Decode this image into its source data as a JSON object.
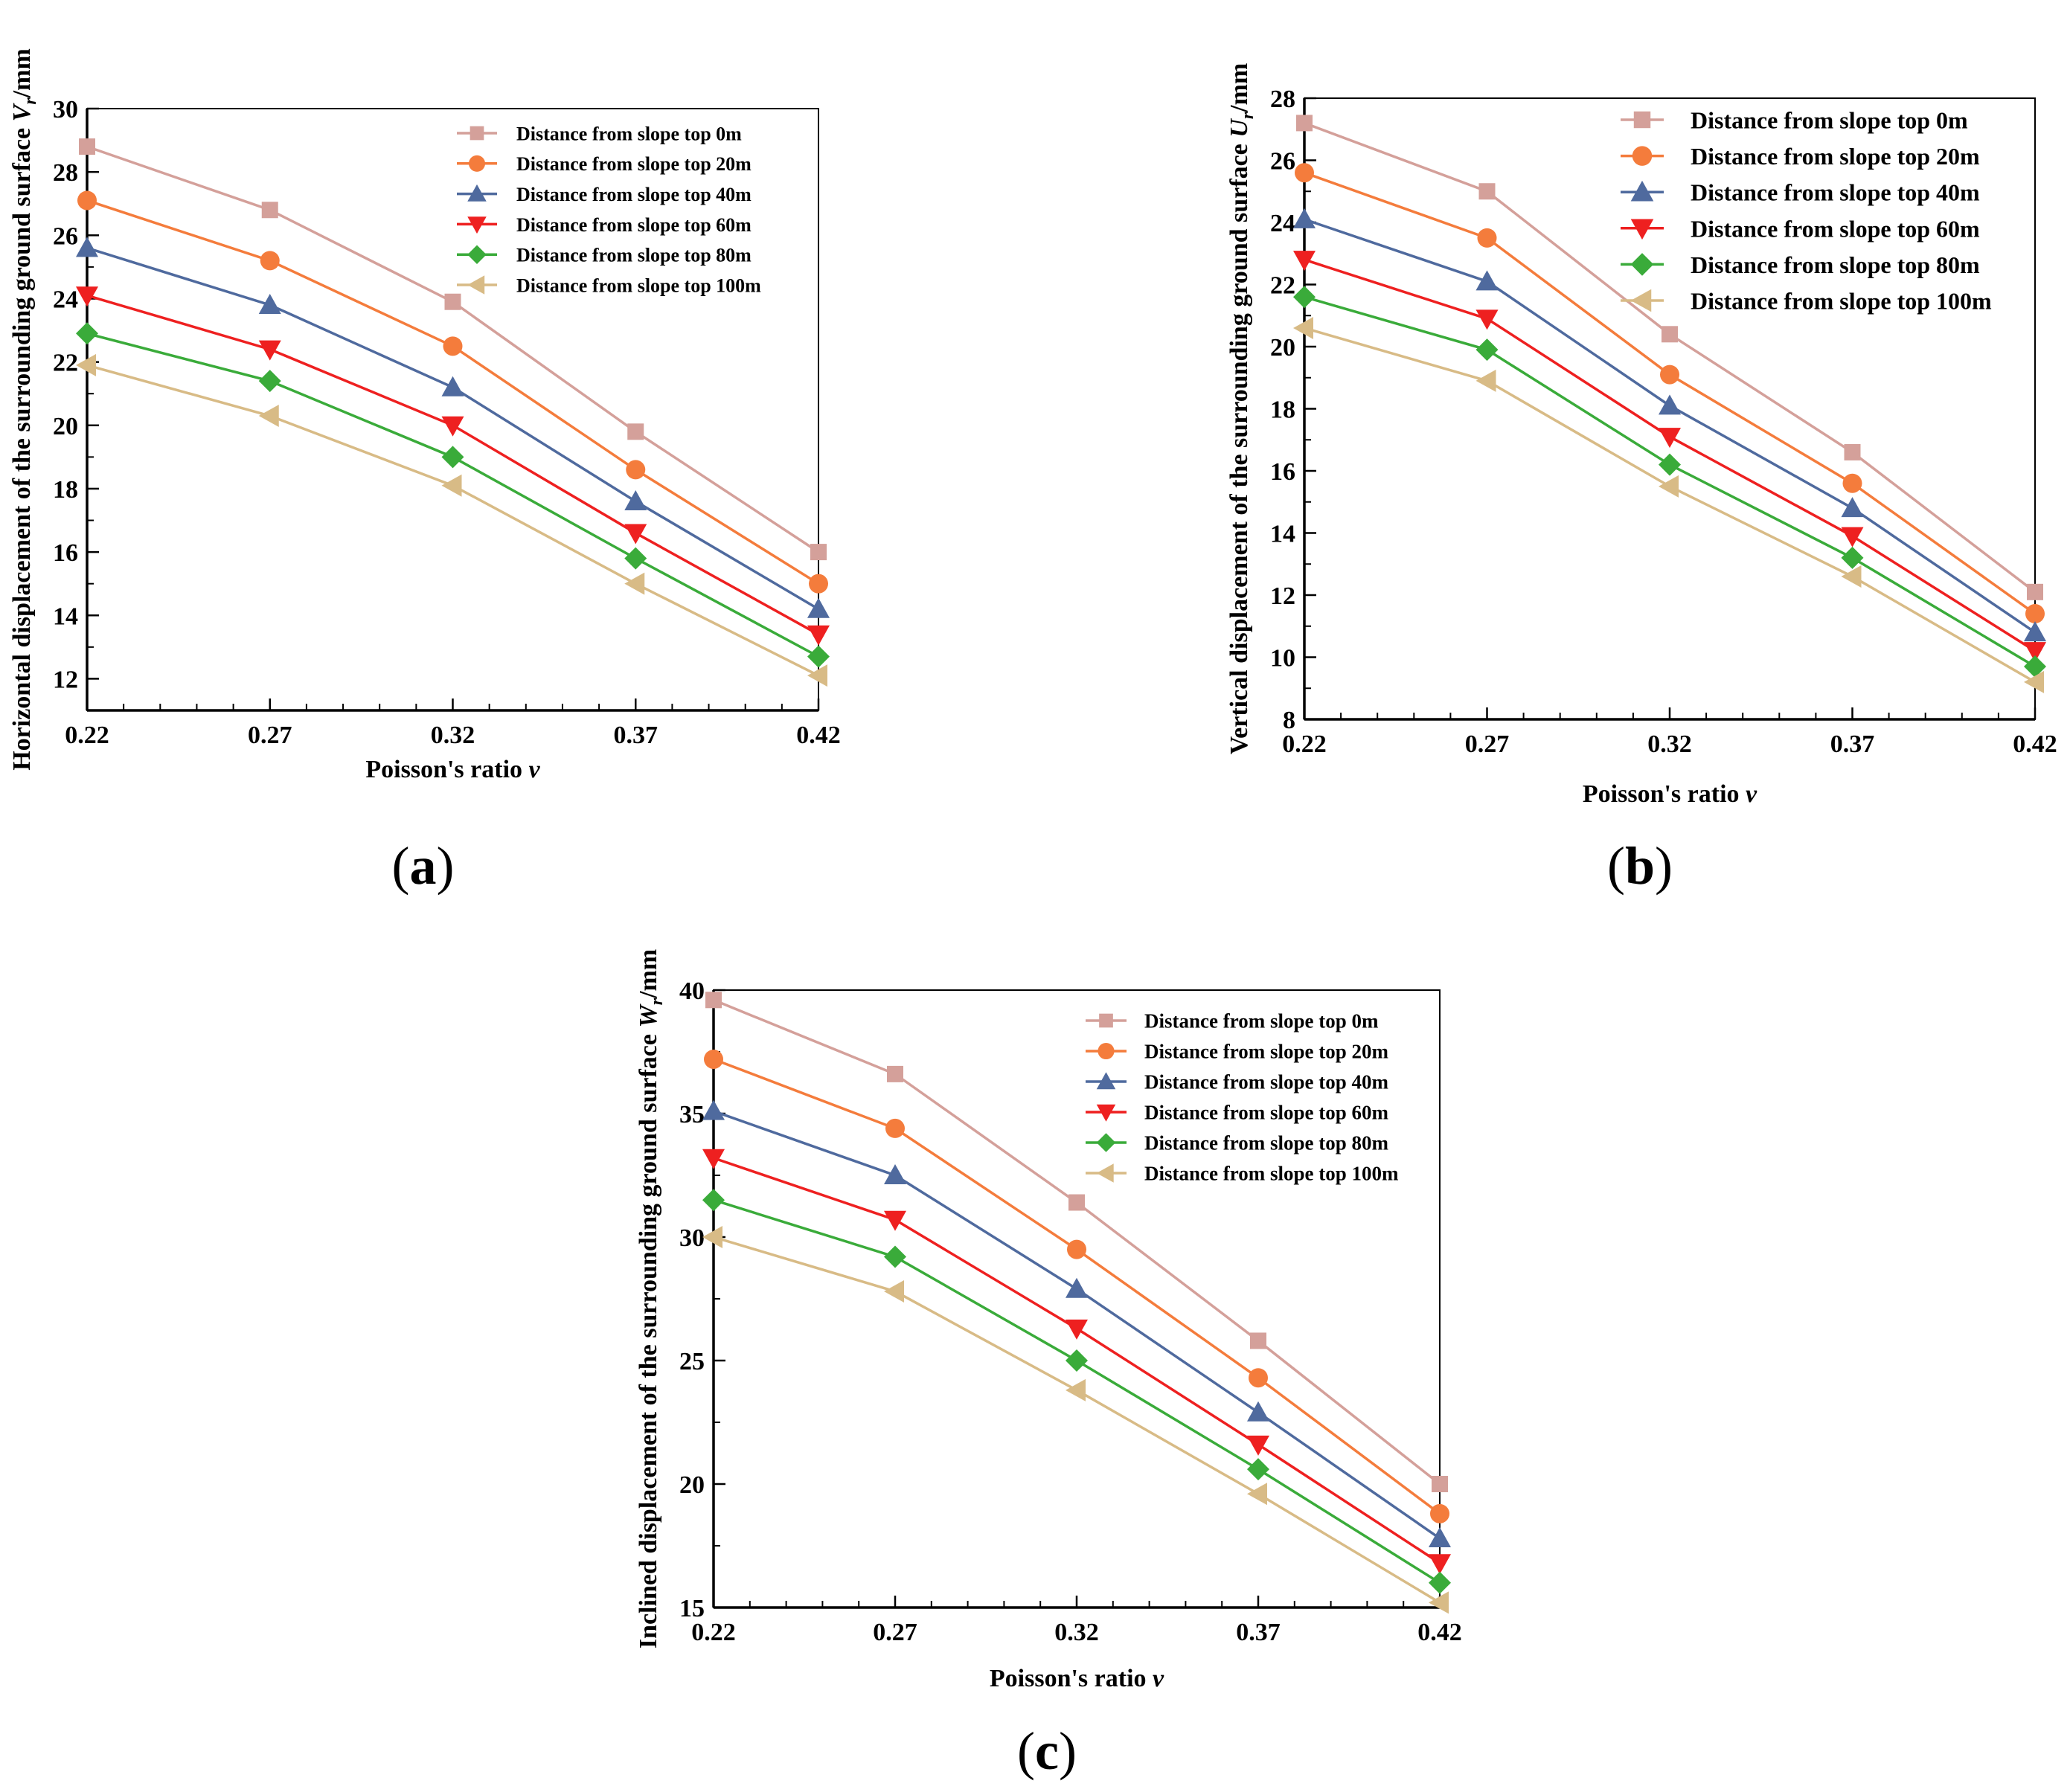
{
  "chart_data": [
    {
      "type": "line",
      "panel_label": "a",
      "x": [
        0.22,
        0.27,
        0.32,
        0.37,
        0.42
      ],
      "x_tick_labels": [
        "0.22",
        "0.27",
        "0.32",
        "0.37",
        "0.42"
      ],
      "xlim": [
        0.22,
        0.42
      ],
      "ylim": [
        11,
        30
      ],
      "y_ticks": [
        12,
        14,
        16,
        18,
        20,
        22,
        24,
        26,
        28,
        30
      ],
      "xlabel": "Poisson's ratio",
      "xlabel_symbol": "ν",
      "ylabel": "Horizontal displacement of the surrounding ground surface",
      "ylabel_symbol": "V",
      "ylabel_subscript": "r",
      "ylabel_unit": "/mm",
      "legend_position": "top-right",
      "grid": false,
      "series": [
        {
          "name": "Distance from slope top 0m",
          "color": "#d4a09a",
          "marker": "square",
          "values": [
            28.8,
            26.8,
            23.9,
            19.8,
            16.0
          ]
        },
        {
          "name": "Distance from slope top 20m",
          "color": "#f47c3c",
          "marker": "circle",
          "values": [
            27.1,
            25.2,
            22.5,
            18.6,
            15.0
          ]
        },
        {
          "name": "Distance from slope top 40m",
          "color": "#4f6a9e",
          "marker": "triangle-up",
          "values": [
            25.6,
            23.8,
            21.2,
            17.6,
            14.2
          ]
        },
        {
          "name": "Distance from slope top 60m",
          "color": "#ee2020",
          "marker": "triangle-down",
          "values": [
            24.1,
            22.4,
            20.0,
            16.6,
            13.4
          ]
        },
        {
          "name": "Distance from slope top 80m",
          "color": "#3aab3a",
          "marker": "diamond",
          "values": [
            22.9,
            21.4,
            19.0,
            15.8,
            12.7
          ]
        },
        {
          "name": "Distance from slope top 100m",
          "color": "#d8bb86",
          "marker": "triangle-left",
          "values": [
            21.9,
            20.3,
            18.1,
            15.0,
            12.1
          ]
        }
      ]
    },
    {
      "type": "line",
      "panel_label": "b",
      "x": [
        0.22,
        0.27,
        0.32,
        0.37,
        0.42
      ],
      "x_tick_labels": [
        "0.22",
        "0.27",
        "0.32",
        "0.37",
        "0.42"
      ],
      "xlim": [
        0.22,
        0.42
      ],
      "ylim": [
        8,
        28
      ],
      "y_ticks": [
        8,
        10,
        12,
        14,
        16,
        18,
        20,
        22,
        24,
        26,
        28
      ],
      "xlabel": "Poisson's ratio",
      "xlabel_symbol": "ν",
      "ylabel": "Vertical displacement of  the surrounding ground surface",
      "ylabel_symbol": "U",
      "ylabel_subscript": "r",
      "ylabel_unit": "/mm",
      "legend_position": "top-right",
      "grid": false,
      "series": [
        {
          "name": "Distance from slope top 0m",
          "color": "#d4a09a",
          "marker": "square",
          "values": [
            27.2,
            25.0,
            20.4,
            16.6,
            12.1
          ]
        },
        {
          "name": "Distance from slope top 20m",
          "color": "#f47c3c",
          "marker": "circle",
          "values": [
            25.6,
            23.5,
            19.1,
            15.6,
            11.4
          ]
        },
        {
          "name": "Distance from slope top 40m",
          "color": "#4f6a9e",
          "marker": "triangle-up",
          "values": [
            24.1,
            22.1,
            18.1,
            14.8,
            10.8
          ]
        },
        {
          "name": "Distance from slope top 60m",
          "color": "#ee2020",
          "marker": "triangle-down",
          "values": [
            22.8,
            20.9,
            17.1,
            13.9,
            10.2
          ]
        },
        {
          "name": "Distance from slope top 80m",
          "color": "#3aab3a",
          "marker": "diamond",
          "values": [
            21.6,
            19.9,
            16.2,
            13.2,
            9.7
          ]
        },
        {
          "name": "Distance from slope top 100m",
          "color": "#d8bb86",
          "marker": "triangle-left",
          "values": [
            20.6,
            18.9,
            15.5,
            12.6,
            9.2
          ]
        }
      ]
    },
    {
      "type": "line",
      "panel_label": "c",
      "x": [
        0.22,
        0.27,
        0.32,
        0.37,
        0.42
      ],
      "x_tick_labels": [
        "0.22",
        "0.27",
        "0.32",
        "0.37",
        "0.42"
      ],
      "xlim": [
        0.22,
        0.42
      ],
      "ylim": [
        15,
        40
      ],
      "y_ticks": [
        15,
        20,
        25,
        30,
        35,
        40
      ],
      "xlabel": "Poisson's ratio",
      "xlabel_symbol": "ν",
      "ylabel": "Inclined displacement of the surrounding ground surface",
      "ylabel_symbol": "W",
      "ylabel_subscript": "r",
      "ylabel_unit": "/mm",
      "legend_position": "top-right",
      "grid": false,
      "series": [
        {
          "name": "Distance from slope top 0m",
          "color": "#d4a09a",
          "marker": "square",
          "values": [
            39.6,
            36.6,
            31.4,
            25.8,
            20.0
          ]
        },
        {
          "name": "Distance from slope top 20m",
          "color": "#f47c3c",
          "marker": "circle",
          "values": [
            37.2,
            34.4,
            29.5,
            24.3,
            18.8
          ]
        },
        {
          "name": "Distance from slope top 40m",
          "color": "#4f6a9e",
          "marker": "triangle-up",
          "values": [
            35.1,
            32.5,
            27.9,
            22.9,
            17.8
          ]
        },
        {
          "name": "Distance from slope top 60m",
          "color": "#ee2020",
          "marker": "triangle-down",
          "values": [
            33.2,
            30.7,
            26.3,
            21.6,
            16.8
          ]
        },
        {
          "name": "Distance from slope top 80m",
          "color": "#3aab3a",
          "marker": "diamond",
          "values": [
            31.5,
            29.2,
            25.0,
            20.6,
            16.0
          ]
        },
        {
          "name": "Distance from slope top 100m",
          "color": "#d8bb86",
          "marker": "triangle-left",
          "values": [
            30.0,
            27.8,
            23.8,
            19.6,
            15.2
          ]
        }
      ]
    }
  ]
}
